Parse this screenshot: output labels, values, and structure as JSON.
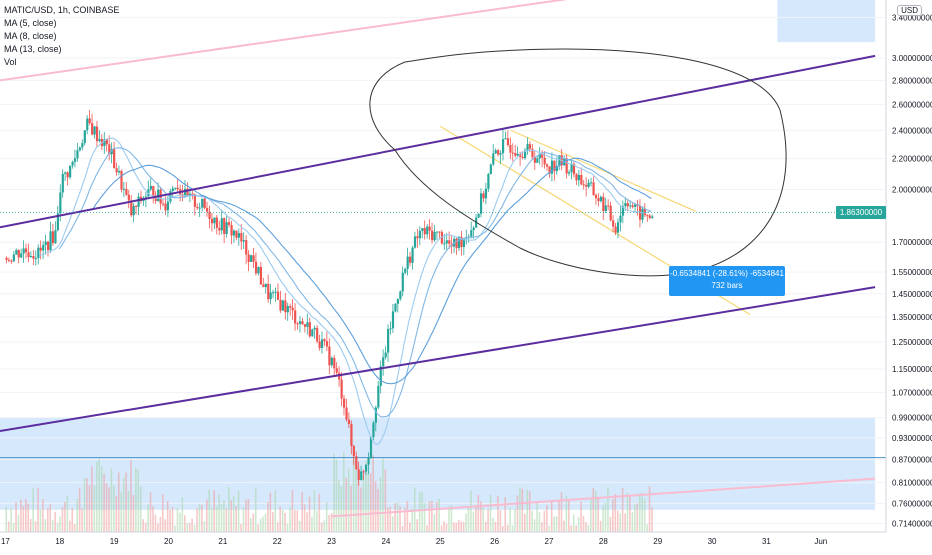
{
  "legend": {
    "symbol": "MATIC/USD, 1h, COINBASE",
    "ma5": "MA (5, close)",
    "ma8": "MA (8, close)",
    "ma13": "MA (13, close)",
    "vol": "Vol"
  },
  "axis": {
    "currency": "USD",
    "current_price": "1.86300000"
  },
  "measure": {
    "line1": "-0.6534841 (-28.61%) -6534841",
    "line2": "732 bars"
  },
  "chart_data": {
    "type": "candlestick",
    "yscale": "log",
    "ylim": [
      0.7,
      3.5
    ],
    "x_ticks": [
      "17",
      "18",
      "19",
      "20",
      "21",
      "22",
      "23",
      "24",
      "25",
      "26",
      "27",
      "28",
      "29",
      "30",
      "31",
      "Jun"
    ],
    "y_ticks": [
      "3.40000000",
      "3.00000000",
      "2.80000000",
      "2.60000000",
      "2.40000000",
      "2.20000000",
      "2.00000000",
      "1.70000000",
      "1.55000000",
      "1.45000000",
      "1.35000000",
      "1.25000000",
      "1.15000000",
      "1.07000000",
      "0.99000000",
      "0.93000000",
      "0.87000000",
      "0.81000000",
      "0.76000000",
      "0.71400000"
    ],
    "price_path": [
      [
        17.0,
        1.62
      ],
      [
        17.3,
        1.66
      ],
      [
        17.6,
        1.64
      ],
      [
        17.9,
        1.75
      ],
      [
        18.0,
        2.05
      ],
      [
        18.2,
        2.15
      ],
      [
        18.5,
        2.45
      ],
      [
        18.7,
        2.35
      ],
      [
        18.9,
        2.25
      ],
      [
        19.1,
        2.05
      ],
      [
        19.3,
        1.85
      ],
      [
        19.5,
        1.95
      ],
      [
        19.7,
        2.0
      ],
      [
        19.9,
        1.9
      ],
      [
        20.1,
        2.05
      ],
      [
        20.3,
        1.95
      ],
      [
        20.6,
        1.9
      ],
      [
        20.9,
        1.8
      ],
      [
        21.2,
        1.75
      ],
      [
        21.5,
        1.62
      ],
      [
        21.8,
        1.45
      ],
      [
        22.1,
        1.4
      ],
      [
        22.4,
        1.33
      ],
      [
        22.7,
        1.28
      ],
      [
        23.0,
        1.17
      ],
      [
        23.2,
        1.05
      ],
      [
        23.35,
        0.9
      ],
      [
        23.5,
        0.82
      ],
      [
        23.65,
        0.88
      ],
      [
        23.8,
        1.05
      ],
      [
        24.0,
        1.25
      ],
      [
        24.2,
        1.45
      ],
      [
        24.4,
        1.62
      ],
      [
        24.6,
        1.75
      ],
      [
        24.8,
        1.75
      ],
      [
        25.0,
        1.73
      ],
      [
        25.2,
        1.67
      ],
      [
        25.4,
        1.72
      ],
      [
        25.6,
        1.8
      ],
      [
        25.8,
        2.0
      ],
      [
        26.0,
        2.25
      ],
      [
        26.2,
        2.3
      ],
      [
        26.4,
        2.27
      ],
      [
        26.6,
        2.25
      ],
      [
        26.8,
        2.2
      ],
      [
        27.0,
        2.15
      ],
      [
        27.2,
        2.18
      ],
      [
        27.4,
        2.12
      ],
      [
        27.6,
        2.05
      ],
      [
        27.8,
        1.98
      ],
      [
        28.0,
        1.9
      ],
      [
        28.2,
        1.78
      ],
      [
        28.4,
        1.95
      ],
      [
        28.6,
        1.86
      ],
      [
        28.8,
        1.84
      ],
      [
        28.9,
        1.86
      ]
    ],
    "ma_series": [
      {
        "name": "MA (5, close)",
        "color": "#9ccbf0"
      },
      {
        "name": "MA (8, close)",
        "color": "#82b8e6"
      },
      {
        "name": "MA (13, close)",
        "color": "#5fa0dc"
      }
    ],
    "channel_lines": [
      {
        "from": [
          16.9,
          1.78
        ],
        "to": [
          33.0,
          3.02
        ],
        "color": "#5b2d9e"
      },
      {
        "from": [
          16.9,
          0.95
        ],
        "to": [
          33.0,
          1.48
        ],
        "color": "#5b2d9e"
      }
    ],
    "descending_channel": [
      {
        "from": [
          26.3,
          2.4
        ],
        "to": [
          29.7,
          1.87
        ],
        "color": "#f7d774"
      },
      {
        "from": [
          25.0,
          2.43
        ],
        "to": [
          30.7,
          1.36
        ],
        "color": "#f7d774"
      }
    ],
    "pink_lines": [
      {
        "from": [
          16.9,
          2.8
        ],
        "to": [
          28.5,
          3.7
        ],
        "color": "#f8bbd0"
      },
      {
        "from": [
          23.0,
          0.73
        ],
        "to": [
          33.0,
          0.82
        ],
        "color": "#f8bbd0"
      }
    ],
    "zones": [
      {
        "y_from": 0.745,
        "y_to": 0.99,
        "x_from": 16.9,
        "x_to": 33.0,
        "color": "#cfe5fb"
      },
      {
        "y_from": 3.15,
        "y_to": 3.6,
        "x_from": 31.2,
        "x_to": 33.0,
        "color": "#cfe5fb"
      }
    ],
    "horizontal_line": {
      "y": 0.875,
      "color": "#4a90c8"
    },
    "current_price": 1.863
  }
}
